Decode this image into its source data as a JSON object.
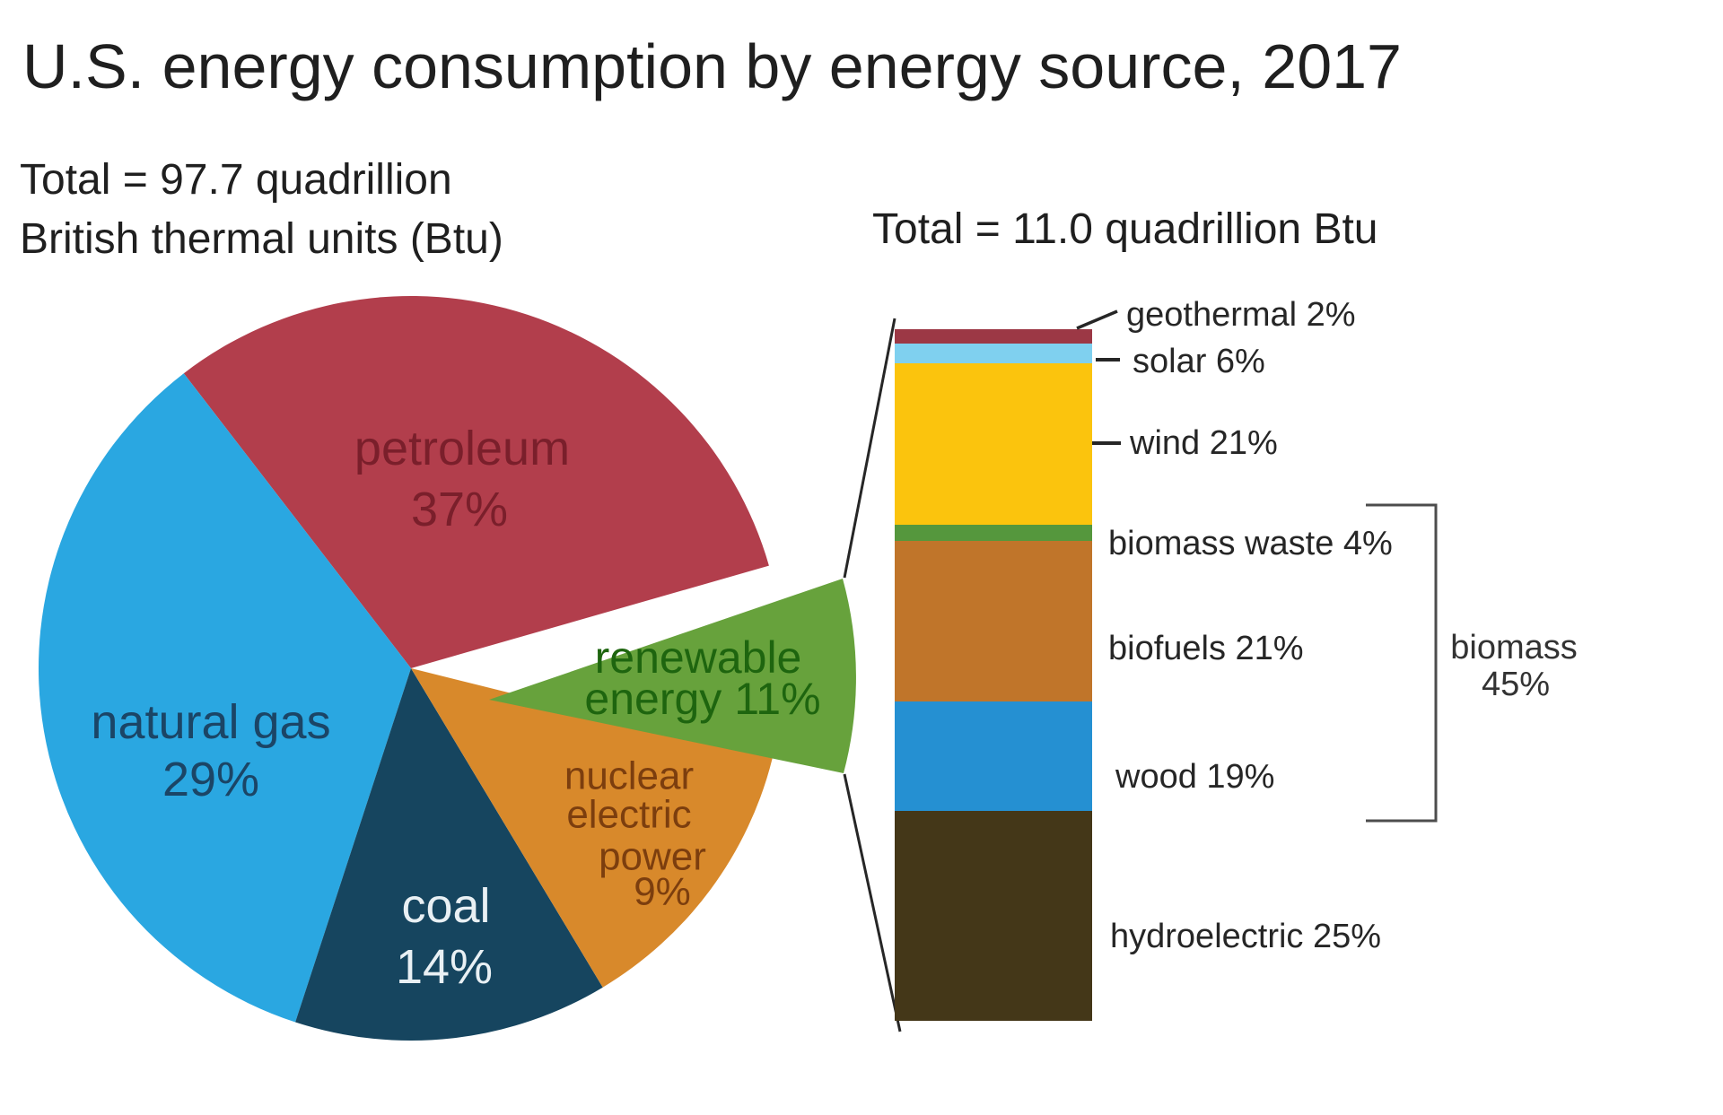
{
  "title": "U.S. energy consumption by energy source, 2017",
  "pie_total": {
    "line1": "Total = 97.7 quadrillion",
    "line2": "British thermal units (Btu)"
  },
  "bar_total": "Total = 11.0 quadrillion Btu",
  "chart_data": [
    {
      "type": "pie",
      "title": "U.S. energy consumption by energy source, 2017",
      "total_label": "Total = 97.7 quadrillion British thermal units (Btu)",
      "unit": "percent",
      "slices": [
        {
          "label": "petroleum",
          "value": 37,
          "display_lines": [
            "petroleum",
            "37%"
          ],
          "color": "#b23e4c",
          "label_color": "#7a1f2b",
          "exploded": false
        },
        {
          "label": "natural gas",
          "value": 29,
          "display_lines": [
            "natural gas",
            "29%"
          ],
          "color": "#2aa7e1",
          "label_color": "#1b4566",
          "exploded": false
        },
        {
          "label": "coal",
          "value": 14,
          "display_lines": [
            "coal",
            "14%"
          ],
          "color": "#16455f",
          "label_color": "#e9f0f4",
          "exploded": false
        },
        {
          "label": "nuclear electric power",
          "value": 9,
          "display_lines": [
            "nuclear",
            "electric",
            "power",
            "9%"
          ],
          "color": "#d8892b",
          "label_color": "#7c3e0e",
          "exploded": false
        },
        {
          "label": "renewable energy",
          "value": 11,
          "display_lines": [
            "renewable",
            "energy 11%"
          ],
          "color": "#67a23c",
          "label_color": "#1e650f",
          "exploded": true
        }
      ]
    },
    {
      "type": "bar",
      "stacked": true,
      "total_label": "Total = 11.0 quadrillion Btu",
      "unit": "percent of renewable energy",
      "segments": [
        {
          "label": "geothermal",
          "value": 2,
          "display": "geothermal 2%",
          "color": "#9c3845"
        },
        {
          "label": "solar",
          "value": 6,
          "display": "solar 6%",
          "color": "#7fd0ef"
        },
        {
          "label": "wind",
          "value": 21,
          "display": "wind 21%",
          "color": "#fbc40d"
        },
        {
          "label": "biomass waste",
          "value": 4,
          "display": "biomass waste 4%",
          "color": "#55973d"
        },
        {
          "label": "biofuels",
          "value": 21,
          "display": "biofuels 21%",
          "color": "#c0752a"
        },
        {
          "label": "wood",
          "value": 19,
          "display": "wood 19%",
          "color": "#2590d2"
        },
        {
          "label": "hydroelectric",
          "value": 25,
          "display": "hydroelectric 25%",
          "color": "#443718"
        }
      ],
      "group": {
        "label": "biomass",
        "value": 45,
        "display_lines": [
          "biomass",
          "45%"
        ],
        "members": [
          "biomass waste",
          "biofuels",
          "wood"
        ]
      }
    }
  ]
}
